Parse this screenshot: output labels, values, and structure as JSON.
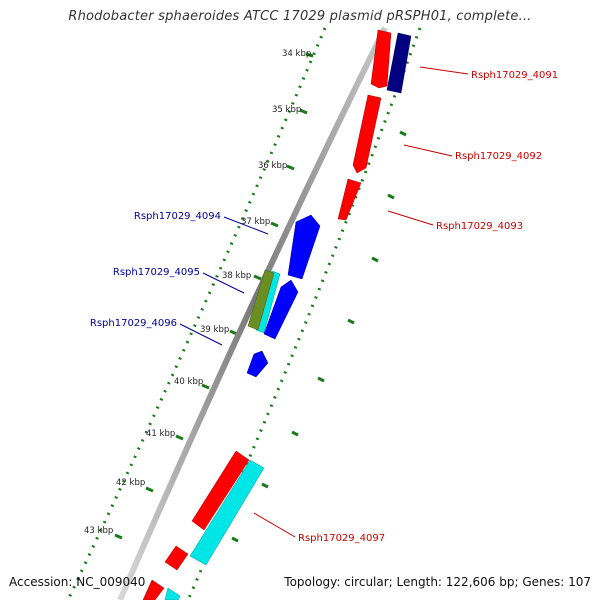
{
  "title": "Rhodobacter sphaeroides ATCC 17029 plasmid pRSPH01, complete...",
  "footer": {
    "accession": "Accession: NC_009040",
    "summary": "Topology: circular; Length: 122,606 bp; Genes: 107"
  },
  "colors": {
    "backbone": "#8a8a8a",
    "ticks": "#1a7a1a",
    "forward_gene": "#ff0000",
    "reverse_gene": "#0000ff",
    "cyan_gene": "#00e5e5",
    "navy_gene": "#000080",
    "olive_gene": "#6b8e23",
    "forward_label": "#cc0000",
    "reverse_label": "#000099"
  },
  "scale": {
    "unit": "kbp",
    "labels": [
      "34 kbp",
      "35 kbp",
      "36 kbp",
      "37 kbp",
      "38 kbp",
      "39 kbp",
      "40 kbp",
      "41 kbp",
      "42 kbp",
      "43 kbp"
    ]
  },
  "gene_labels": {
    "g4091": "Rsph17029_4091",
    "g4092": "Rsph17029_4092",
    "g4093": "Rsph17029_4093",
    "g4094": "Rsph17029_4094",
    "g4095": "Rsph17029_4095",
    "g4096": "Rsph17029_4096",
    "g4097": "Rsph17029_4097"
  }
}
